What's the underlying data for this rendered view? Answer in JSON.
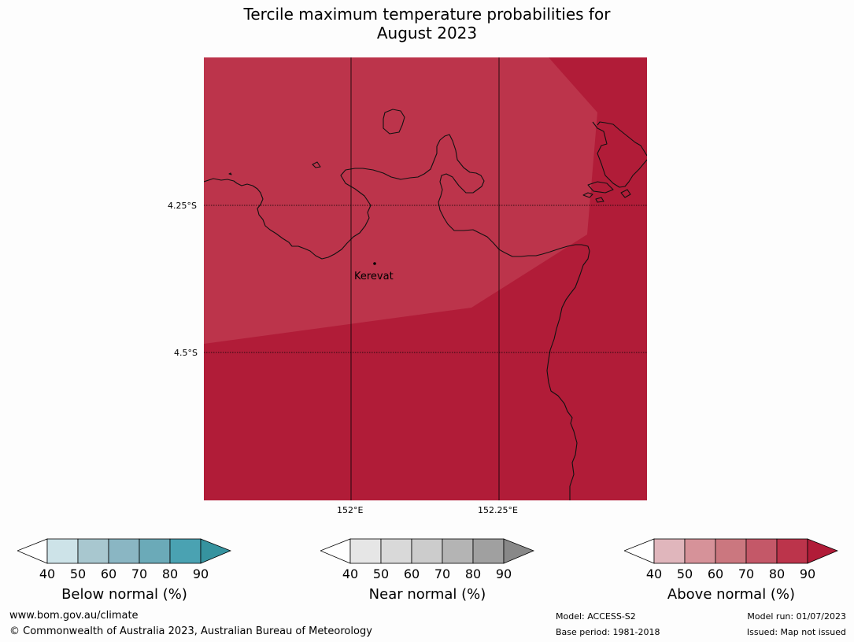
{
  "title": {
    "line1": "Tercile maximum temperature probabilities for",
    "line2": "August 2023"
  },
  "map": {
    "place_label": "Kerevat",
    "lat_labels": [
      "4.25°S",
      "4.5°S"
    ],
    "lon_labels": [
      "152°E",
      "152.25°E"
    ],
    "colors": {
      "band_80_90": "#bc344b",
      "band_90_plus": "#b11c38"
    }
  },
  "colorbars": [
    {
      "title": "Below normal (%)",
      "ticks": [
        "40",
        "50",
        "60",
        "70",
        "80",
        "90"
      ],
      "colors": [
        "#ffffff",
        "#cde3e8",
        "#a8c7cf",
        "#8ab6c3",
        "#6baab8",
        "#4aa2b2",
        "#36939f"
      ]
    },
    {
      "title": "Near normal (%)",
      "ticks": [
        "40",
        "50",
        "60",
        "70",
        "80",
        "90"
      ],
      "colors": [
        "#ffffff",
        "#e6e6e6",
        "#d9d9d9",
        "#cccccc",
        "#b4b4b4",
        "#a0a0a0",
        "#888888"
      ]
    },
    {
      "title": "Above normal (%)",
      "ticks": [
        "40",
        "50",
        "60",
        "70",
        "80",
        "90"
      ],
      "colors": [
        "#ffffff",
        "#e0b6bc",
        "#d69299",
        "#cb777f",
        "#c45868",
        "#bc344b",
        "#b11c38"
      ]
    }
  ],
  "footer": {
    "website": "www.bom.gov.au/climate",
    "copyright": "© Commonwealth of Australia 2023, Australian Bureau of Meteorology",
    "model": "Model: ACCESS-S2",
    "base_period": "Base period: 1981-2018",
    "model_run": "Model run: 01/07/2023",
    "issued": "Issued: Map not issued"
  }
}
